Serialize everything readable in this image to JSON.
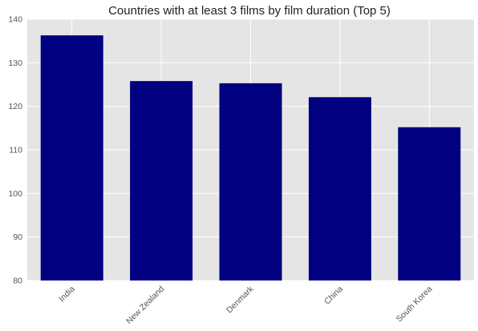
{
  "chart_data": {
    "type": "bar",
    "title": "Countries with at least 3 films by film duration (Top 5)",
    "xlabel": "",
    "ylabel": "",
    "categories": [
      "India",
      "New Zealand",
      "Denmark",
      "China",
      "South Korea"
    ],
    "values": [
      136.3,
      125.8,
      125.3,
      122.1,
      115.2
    ],
    "ylim": [
      80,
      140
    ],
    "yticks": [
      80,
      90,
      100,
      110,
      120,
      130,
      140
    ],
    "grid": true,
    "bar_color": "#000080",
    "plot_background": "#e5e5e5",
    "grid_color": "#ffffff"
  }
}
